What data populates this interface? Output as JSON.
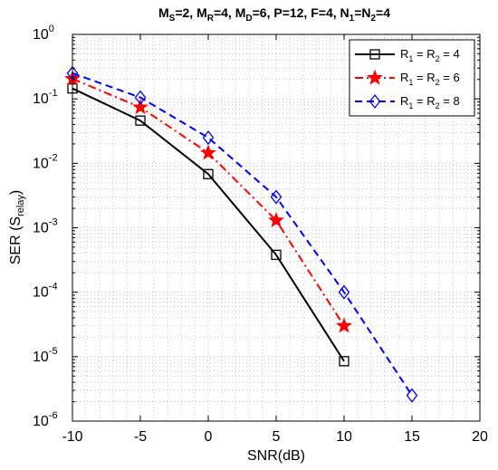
{
  "chart_data": {
    "type": "line",
    "title_parts": [
      {
        "t": "M"
      },
      {
        "t": "S",
        "sub": true
      },
      {
        "t": "=2, M"
      },
      {
        "t": "R",
        "sub": true
      },
      {
        "t": "=4, M"
      },
      {
        "t": "D",
        "sub": true
      },
      {
        "t": "=6, P=12, F=4, N"
      },
      {
        "t": "1",
        "sub": true
      },
      {
        "t": "=N"
      },
      {
        "t": "2",
        "sub": true
      },
      {
        "t": "=4"
      }
    ],
    "xlabel": "SNR(dB)",
    "ylabel_parts": [
      {
        "t": "SER (S"
      },
      {
        "t": "relay",
        "sub": true
      },
      {
        "t": ")"
      }
    ],
    "xlim": [
      -10,
      20
    ],
    "ylim": [
      1e-06,
      1
    ],
    "y_scale": "log",
    "grid": true,
    "legend_position": "top-right",
    "x_ticks": [
      "-10",
      "-5",
      "0",
      "5",
      "10",
      "15",
      "20"
    ],
    "y_ticks": [
      {
        "base": "10",
        "exp": "-6"
      },
      {
        "base": "10",
        "exp": "-5"
      },
      {
        "base": "10",
        "exp": "-4"
      },
      {
        "base": "10",
        "exp": "-3"
      },
      {
        "base": "10",
        "exp": "-2"
      },
      {
        "base": "10",
        "exp": "-1"
      },
      {
        "base": "10",
        "exp": "0"
      }
    ],
    "series": [
      {
        "name_parts": [
          {
            "t": "R"
          },
          {
            "t": "1",
            "sub": true
          },
          {
            "t": " = R"
          },
          {
            "t": "2",
            "sub": true
          },
          {
            "t": " = 4"
          }
        ],
        "color": "#000000",
        "line_style": "solid",
        "marker": "square",
        "x": [
          -10,
          -5,
          0,
          5,
          10
        ],
        "y": [
          0.145,
          0.046,
          0.0068,
          0.00038,
          8.5e-06
        ]
      },
      {
        "name_parts": [
          {
            "t": "R"
          },
          {
            "t": "1",
            "sub": true
          },
          {
            "t": " = R"
          },
          {
            "t": "2",
            "sub": true
          },
          {
            "t": " = 6"
          }
        ],
        "color": "#ff0000",
        "line_style": "dashdot",
        "marker": "star",
        "x": [
          -10,
          -5,
          0,
          5,
          10
        ],
        "y": [
          0.205,
          0.074,
          0.0145,
          0.0013,
          3e-05
        ]
      },
      {
        "name_parts": [
          {
            "t": "R"
          },
          {
            "t": "1",
            "sub": true
          },
          {
            "t": " = R"
          },
          {
            "t": "2",
            "sub": true
          },
          {
            "t": " = 8"
          }
        ],
        "color": "#0000ff",
        "line_style": "dashed",
        "marker": "diamond",
        "x": [
          -10,
          -5,
          0,
          5,
          10,
          15
        ],
        "y": [
          0.25,
          0.105,
          0.025,
          0.003,
          0.0001,
          2.5e-06
        ]
      }
    ]
  }
}
